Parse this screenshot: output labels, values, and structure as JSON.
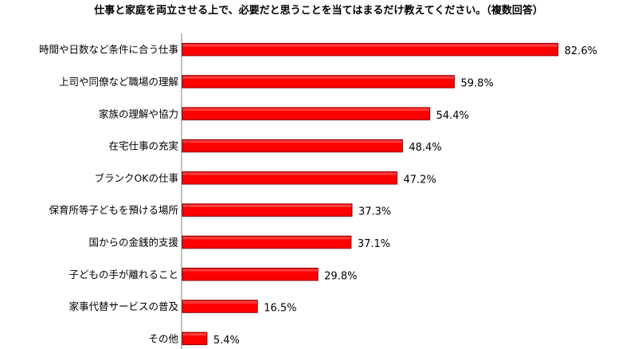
{
  "chart_data": {
    "type": "bar",
    "orientation": "horizontal",
    "title": "仕事と家庭を両立させる上で、必要だと思うことを当てはまるだけ教えてください。（複数回答）",
    "categories": [
      "時間や日数など条件に合う仕事",
      "上司や同僚など職場の理解",
      "家族の理解や協力",
      "在宅仕事の充実",
      "ブランクOKの仕事",
      "保育所等子どもを預ける場所",
      "国からの金銭的支援",
      "子どもの手が離れること",
      "家事代替サービスの普及",
      "その他"
    ],
    "values": [
      82.6,
      59.8,
      54.4,
      48.4,
      47.2,
      37.3,
      37.1,
      29.8,
      16.5,
      5.4
    ],
    "value_labels": [
      "82.6%",
      "59.8%",
      "54.4%",
      "48.4%",
      "47.2%",
      "37.3%",
      "37.1%",
      "29.8%",
      "16.5%",
      "5.4%"
    ],
    "xlim": [
      0,
      100
    ],
    "bar_color": "#ff0000",
    "grid": false,
    "legend": "none"
  }
}
